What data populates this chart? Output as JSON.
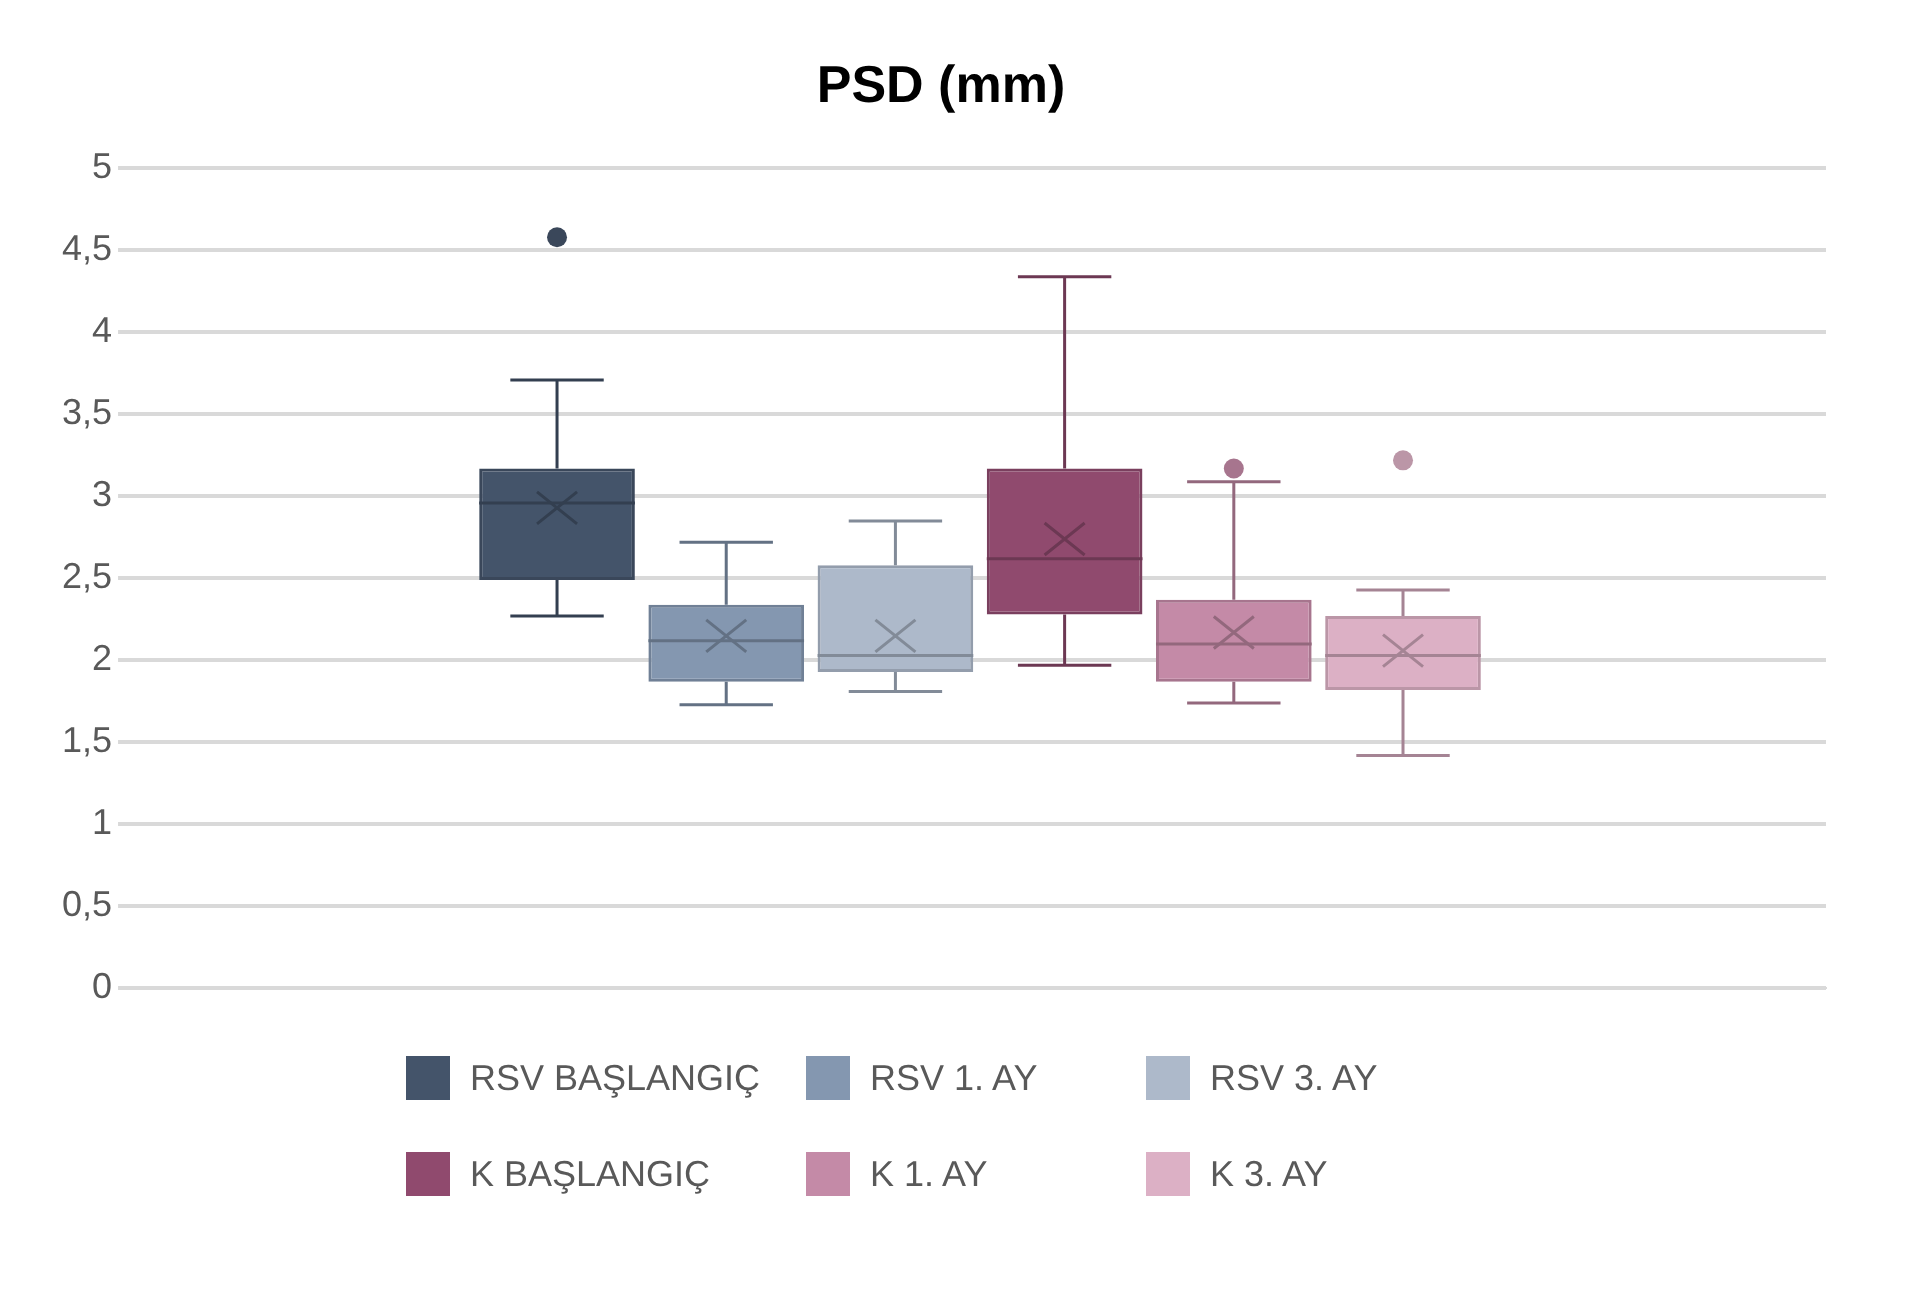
{
  "chart_data": {
    "type": "box",
    "title": "PSD (mm)",
    "categories": [
      null
    ],
    "ylim": [
      0,
      5
    ],
    "yticks": [
      0,
      {
        "value": 0.5,
        "label": "0,5"
      },
      1,
      {
        "value": 1.5,
        "label": "1,5"
      },
      2,
      {
        "value": 2.5,
        "label": "2,5"
      },
      3,
      {
        "value": 3.5,
        "label": "3,5"
      },
      4,
      {
        "value": 4.5,
        "label": "4,5"
      },
      5
    ],
    "grid": "y",
    "tick_labels": "y",
    "legend": "bottom",
    "series": [
      {
        "name": "RSV BAŞLANGIÇ",
        "color": "#44546a",
        "boxes": [
          {
            "low": 2.27,
            "q1": 2.49,
            "median": 2.96,
            "q3": 3.17,
            "high": 3.71,
            "mean": 2.93,
            "outliers": [
              4.58
            ]
          }
        ]
      },
      {
        "name": "RSV 1. AY",
        "color": "#8497b0",
        "boxes": [
          {
            "low": 1.73,
            "q1": 1.87,
            "median": 2.12,
            "q3": 2.34,
            "high": 2.72,
            "mean": 2.15
          }
        ]
      },
      {
        "name": "RSV 3. AY",
        "color": "#adb9ca",
        "boxes": [
          {
            "low": 1.81,
            "q1": 1.93,
            "median": 2.03,
            "q3": 2.58,
            "high": 2.85,
            "mean": 2.15
          }
        ]
      },
      {
        "name": "K BAŞLANGIÇ",
        "color": "#904a6e",
        "boxes": [
          {
            "low": 1.97,
            "q1": 2.28,
            "median": 2.62,
            "q3": 3.17,
            "high": 4.34,
            "mean": 2.74
          }
        ]
      },
      {
        "name": "K 1. AY",
        "color": "#c48aa7",
        "boxes": [
          {
            "low": 1.74,
            "q1": 1.87,
            "median": 2.1,
            "q3": 2.37,
            "high": 3.09,
            "mean": 2.17,
            "outliers": [
              3.17
            ]
          }
        ]
      },
      {
        "name": "K 3. AY",
        "color": "#dcb0c5",
        "boxes": [
          {
            "low": 1.42,
            "q1": 1.82,
            "median": 2.03,
            "q3": 2.27,
            "high": 2.43,
            "mean": 2.06,
            "outliers": [
              3.22
            ]
          }
        ]
      }
    ]
  }
}
